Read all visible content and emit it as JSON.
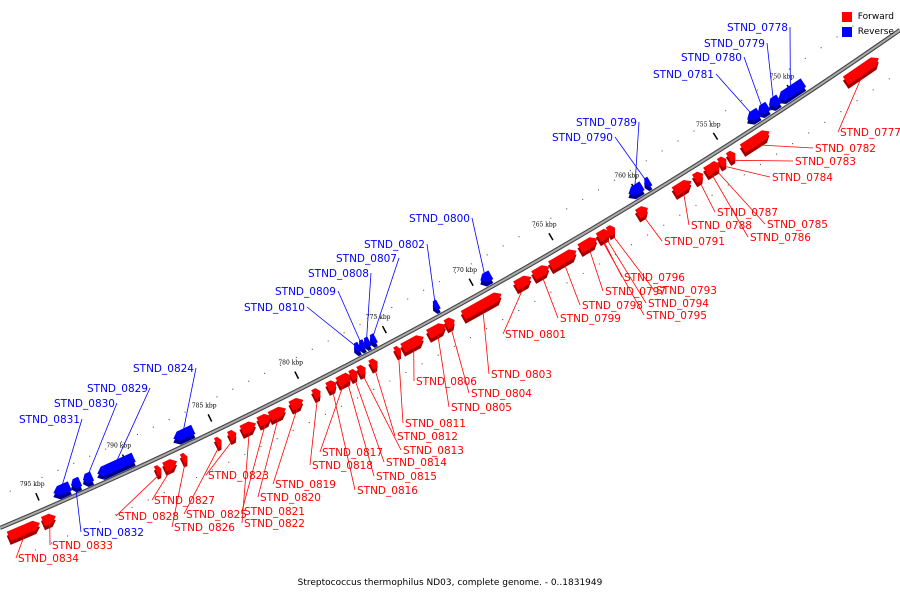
{
  "caption": "Streptococcus thermophilus ND03, complete genome. - 0..1831949",
  "legend": {
    "forward": {
      "label": "Forward",
      "color": "#ff0000"
    },
    "reverse": {
      "label": "Reverse",
      "color": "#0000ff"
    }
  },
  "colors": {
    "forward": "#ff0000",
    "forward_dark": "#a00000",
    "reverse": "#0000ff",
    "reverse_dark": "#000090",
    "backbone": "#777777"
  },
  "ticks": [
    "750 kbp",
    "755 kbp",
    "760 kbp",
    "765 kbp",
    "770 kbp",
    "775 kbp",
    "780 kbp",
    "785 kbp",
    "790 kbp",
    "795 kbp"
  ],
  "genes": [
    {
      "name": "STND_0777",
      "strand": "forward"
    },
    {
      "name": "STND_0778",
      "strand": "reverse"
    },
    {
      "name": "STND_0779",
      "strand": "reverse"
    },
    {
      "name": "STND_0780",
      "strand": "reverse"
    },
    {
      "name": "STND_0781",
      "strand": "reverse"
    },
    {
      "name": "STND_0782",
      "strand": "forward"
    },
    {
      "name": "STND_0783",
      "strand": "forward"
    },
    {
      "name": "STND_0784",
      "strand": "forward"
    },
    {
      "name": "STND_0785",
      "strand": "forward"
    },
    {
      "name": "STND_0786",
      "strand": "forward"
    },
    {
      "name": "STND_0787",
      "strand": "forward"
    },
    {
      "name": "STND_0788",
      "strand": "forward"
    },
    {
      "name": "STND_0789",
      "strand": "reverse"
    },
    {
      "name": "STND_0790",
      "strand": "reverse"
    },
    {
      "name": "STND_0791",
      "strand": "forward"
    },
    {
      "name": "STND_0793",
      "strand": "forward"
    },
    {
      "name": "STND_0794",
      "strand": "forward"
    },
    {
      "name": "STND_0795",
      "strand": "forward"
    },
    {
      "name": "STND_0796",
      "strand": "forward"
    },
    {
      "name": "STND_0797",
      "strand": "forward"
    },
    {
      "name": "STND_0798",
      "strand": "forward"
    },
    {
      "name": "STND_0799",
      "strand": "forward"
    },
    {
      "name": "STND_0800",
      "strand": "reverse"
    },
    {
      "name": "STND_0801",
      "strand": "forward"
    },
    {
      "name": "STND_0802",
      "strand": "reverse"
    },
    {
      "name": "STND_0803",
      "strand": "forward"
    },
    {
      "name": "STND_0804",
      "strand": "forward"
    },
    {
      "name": "STND_0805",
      "strand": "forward"
    },
    {
      "name": "STND_0806",
      "strand": "forward"
    },
    {
      "name": "STND_0807",
      "strand": "reverse"
    },
    {
      "name": "STND_0808",
      "strand": "reverse"
    },
    {
      "name": "STND_0809",
      "strand": "reverse"
    },
    {
      "name": "STND_0810",
      "strand": "reverse"
    },
    {
      "name": "STND_0811",
      "strand": "forward"
    },
    {
      "name": "STND_0812",
      "strand": "forward"
    },
    {
      "name": "STND_0813",
      "strand": "forward"
    },
    {
      "name": "STND_0814",
      "strand": "forward"
    },
    {
      "name": "STND_0815",
      "strand": "forward"
    },
    {
      "name": "STND_0816",
      "strand": "forward"
    },
    {
      "name": "STND_0817",
      "strand": "forward"
    },
    {
      "name": "STND_0818",
      "strand": "forward"
    },
    {
      "name": "STND_0819",
      "strand": "forward"
    },
    {
      "name": "STND_0820",
      "strand": "forward"
    },
    {
      "name": "STND_0821",
      "strand": "forward"
    },
    {
      "name": "STND_0822",
      "strand": "forward"
    },
    {
      "name": "STND_0823",
      "strand": "forward"
    },
    {
      "name": "STND_0824",
      "strand": "reverse"
    },
    {
      "name": "STND_0825",
      "strand": "forward"
    },
    {
      "name": "STND_0826",
      "strand": "forward"
    },
    {
      "name": "STND_0827",
      "strand": "forward"
    },
    {
      "name": "STND_0828",
      "strand": "forward"
    },
    {
      "name": "STND_0829",
      "strand": "reverse"
    },
    {
      "name": "STND_0830",
      "strand": "reverse"
    },
    {
      "name": "STND_0831",
      "strand": "reverse"
    },
    {
      "name": "STND_0832",
      "strand": "reverse"
    },
    {
      "name": "STND_0833",
      "strand": "forward"
    },
    {
      "name": "STND_0834",
      "strand": "forward"
    }
  ]
}
